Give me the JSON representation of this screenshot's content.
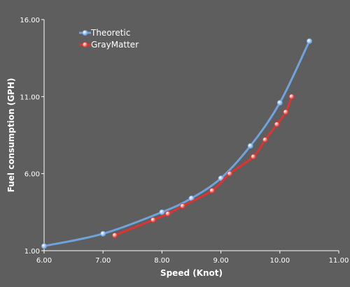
{
  "chart_data": {
    "type": "line",
    "title": "",
    "xlabel": "Speed (Knot)",
    "ylabel": "Fuel consumption (GPH)",
    "xlim": [
      6.0,
      11.0
    ],
    "ylim": [
      1.0,
      16.0
    ],
    "x_ticks": [
      6.0,
      7.0,
      8.0,
      9.0,
      10.0,
      11.0
    ],
    "x_tick_labels": [
      "6.00",
      "7.00",
      "8.00",
      "9.00",
      "10.00",
      "11.00"
    ],
    "y_ticks": [
      1.0,
      6.0,
      11.0,
      16.0
    ],
    "y_tick_labels": [
      "1.00",
      "6.00",
      "11.00",
      "16.00"
    ],
    "grid": false,
    "legend_position": "top-left",
    "series": [
      {
        "name": "Theoretic",
        "color": "#6fa3dc",
        "x": [
          6.0,
          7.0,
          8.0,
          8.5,
          9.0,
          9.5,
          10.0,
          10.5
        ],
        "y": [
          1.3,
          2.1,
          3.5,
          4.4,
          5.7,
          7.8,
          10.6,
          14.6
        ]
      },
      {
        "name": "GrayMatter",
        "color": "#e0332f",
        "x": [
          7.2,
          7.85,
          8.1,
          8.35,
          8.85,
          9.15,
          9.55,
          9.75,
          9.95,
          10.1,
          10.2
        ],
        "y": [
          2.0,
          3.0,
          3.4,
          3.9,
          4.9,
          6.0,
          7.1,
          8.2,
          9.2,
          10.0,
          11.0
        ]
      }
    ]
  }
}
